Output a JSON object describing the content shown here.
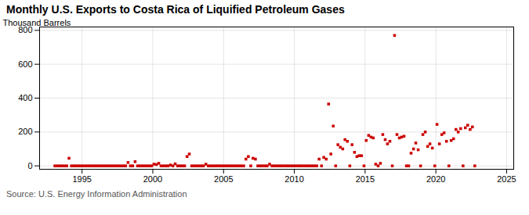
{
  "chart_data": {
    "type": "scatter",
    "title": "Monthly U.S. Exports to Costa Rica of Liquified Petroleum Gases",
    "ylabel": "Thousand Barrels",
    "source": "Source: U.S. Energy Information Administration",
    "color": "#cc0000",
    "marker": "square",
    "grid": true,
    "xlim": [
      1992.0,
      2025.5
    ],
    "ylim": [
      -20,
      820
    ],
    "xticks": [
      1995,
      2000,
      2005,
      2010,
      2015,
      2020,
      2025
    ],
    "yticks": [
      0,
      200,
      400,
      600,
      800
    ],
    "x": [
      1993.08,
      1993.25,
      1993.42,
      1993.58,
      1993.75,
      1993.92,
      1994.08,
      1994.25,
      1994.42,
      1994.58,
      1994.75,
      1994.92,
      1995.08,
      1995.25,
      1995.42,
      1995.58,
      1995.75,
      1995.92,
      1996.08,
      1996.25,
      1996.42,
      1996.58,
      1996.75,
      1996.92,
      1997.08,
      1997.25,
      1997.42,
      1997.58,
      1997.75,
      1997.92,
      1998.08,
      1998.25,
      1998.42,
      1998.58,
      1998.75,
      1998.92,
      1999.08,
      1999.25,
      1999.42,
      1999.58,
      1999.75,
      1999.92,
      2000.08,
      2000.25,
      2000.42,
      2000.58,
      2000.75,
      2000.92,
      2001.08,
      2001.25,
      2001.42,
      2001.58,
      2001.75,
      2001.92,
      2002.08,
      2002.25,
      2002.42,
      2002.58,
      2002.75,
      2002.92,
      2003.08,
      2003.25,
      2003.42,
      2003.58,
      2003.75,
      2003.92,
      2004.08,
      2004.25,
      2004.42,
      2004.58,
      2004.75,
      2004.92,
      2005.08,
      2005.25,
      2005.42,
      2005.58,
      2005.75,
      2005.92,
      2006.08,
      2006.25,
      2006.42,
      2006.58,
      2006.75,
      2006.92,
      2007.08,
      2007.25,
      2007.42,
      2007.58,
      2007.75,
      2007.92,
      2008.08,
      2008.25,
      2008.42,
      2008.58,
      2008.75,
      2008.92,
      2009.08,
      2009.25,
      2009.42,
      2009.58,
      2009.75,
      2009.92,
      2010.08,
      2010.25,
      2010.42,
      2010.58,
      2010.75,
      2010.92,
      2011.08,
      2011.25,
      2011.42,
      2011.58,
      2011.75,
      2011.92,
      2012.08,
      2012.25,
      2012.42,
      2012.58,
      2012.75,
      2012.92,
      2013.08,
      2013.25,
      2013.42,
      2013.58,
      2013.75,
      2013.92,
      2014.08,
      2014.25,
      2014.42,
      2014.58,
      2014.75,
      2014.92,
      2015.08,
      2015.25,
      2015.42,
      2015.58,
      2015.75,
      2015.92,
      2016.08,
      2016.25,
      2016.42,
      2016.58,
      2016.75,
      2016.92,
      2017.08,
      2017.25,
      2017.42,
      2017.58,
      2017.75,
      2017.92,
      2018.08,
      2018.25,
      2018.42,
      2018.58,
      2018.75,
      2018.92,
      2019.08,
      2019.25,
      2019.42,
      2019.58,
      2019.75,
      2019.92,
      2020.08,
      2020.25,
      2020.42,
      2020.58,
      2020.75,
      2020.92,
      2021.08,
      2021.25,
      2021.42,
      2021.58,
      2021.75,
      2021.92,
      2022.08,
      2022.25,
      2022.42,
      2022.58,
      2022.75
    ],
    "values": [
      0,
      0,
      0,
      0,
      0,
      0,
      45,
      0,
      0,
      0,
      0,
      0,
      0,
      0,
      0,
      0,
      0,
      0,
      0,
      0,
      0,
      0,
      0,
      0,
      0,
      0,
      0,
      0,
      0,
      0,
      0,
      20,
      0,
      0,
      25,
      0,
      0,
      0,
      0,
      0,
      0,
      0,
      10,
      8,
      15,
      0,
      0,
      0,
      0,
      5,
      0,
      12,
      0,
      0,
      0,
      0,
      55,
      70,
      0,
      0,
      0,
      0,
      0,
      0,
      10,
      0,
      0,
      0,
      0,
      0,
      0,
      0,
      0,
      0,
      0,
      0,
      0,
      0,
      0,
      0,
      0,
      40,
      55,
      0,
      45,
      40,
      0,
      0,
      0,
      0,
      0,
      10,
      0,
      0,
      0,
      0,
      0,
      0,
      0,
      0,
      0,
      0,
      0,
      0,
      0,
      0,
      0,
      0,
      0,
      0,
      0,
      0,
      40,
      0,
      50,
      40,
      365,
      70,
      235,
      0,
      125,
      110,
      100,
      155,
      145,
      0,
      125,
      80,
      55,
      60,
      60,
      0,
      150,
      180,
      170,
      165,
      10,
      0,
      15,
      185,
      155,
      130,
      145,
      0,
      770,
      185,
      165,
      170,
      175,
      0,
      0,
      75,
      100,
      135,
      95,
      0,
      185,
      200,
      115,
      130,
      105,
      0,
      245,
      130,
      185,
      195,
      145,
      0,
      150,
      160,
      215,
      200,
      220,
      0,
      225,
      240,
      215,
      230,
      0
    ]
  }
}
